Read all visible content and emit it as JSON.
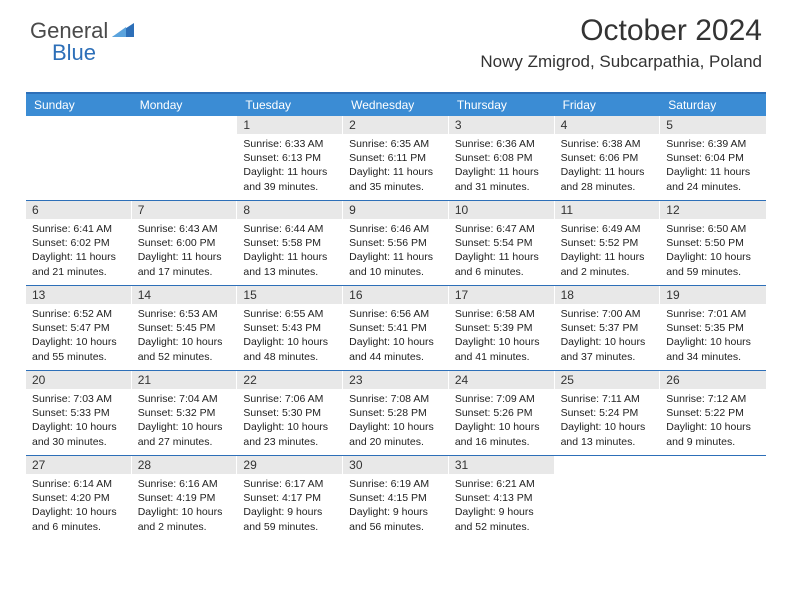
{
  "logo": {
    "word1": "General",
    "word2": "Blue"
  },
  "header": {
    "month_title": "October 2024",
    "location": "Nowy Zmigrod, Subcarpathia, Poland"
  },
  "colors": {
    "header_bg": "#3b8cd4",
    "header_rule": "#2d6fb8",
    "daynum_bg": "#e8e8e8",
    "logo_blue": "#2d6fb8",
    "logo_gray": "#4a4a4a"
  },
  "day_names": [
    "Sunday",
    "Monday",
    "Tuesday",
    "Wednesday",
    "Thursday",
    "Friday",
    "Saturday"
  ],
  "weeks": [
    [
      null,
      null,
      {
        "n": "1",
        "sr": "Sunrise: 6:33 AM",
        "ss": "Sunset: 6:13 PM",
        "d1": "Daylight: 11 hours",
        "d2": "and 39 minutes."
      },
      {
        "n": "2",
        "sr": "Sunrise: 6:35 AM",
        "ss": "Sunset: 6:11 PM",
        "d1": "Daylight: 11 hours",
        "d2": "and 35 minutes."
      },
      {
        "n": "3",
        "sr": "Sunrise: 6:36 AM",
        "ss": "Sunset: 6:08 PM",
        "d1": "Daylight: 11 hours",
        "d2": "and 31 minutes."
      },
      {
        "n": "4",
        "sr": "Sunrise: 6:38 AM",
        "ss": "Sunset: 6:06 PM",
        "d1": "Daylight: 11 hours",
        "d2": "and 28 minutes."
      },
      {
        "n": "5",
        "sr": "Sunrise: 6:39 AM",
        "ss": "Sunset: 6:04 PM",
        "d1": "Daylight: 11 hours",
        "d2": "and 24 minutes."
      }
    ],
    [
      {
        "n": "6",
        "sr": "Sunrise: 6:41 AM",
        "ss": "Sunset: 6:02 PM",
        "d1": "Daylight: 11 hours",
        "d2": "and 21 minutes."
      },
      {
        "n": "7",
        "sr": "Sunrise: 6:43 AM",
        "ss": "Sunset: 6:00 PM",
        "d1": "Daylight: 11 hours",
        "d2": "and 17 minutes."
      },
      {
        "n": "8",
        "sr": "Sunrise: 6:44 AM",
        "ss": "Sunset: 5:58 PM",
        "d1": "Daylight: 11 hours",
        "d2": "and 13 minutes."
      },
      {
        "n": "9",
        "sr": "Sunrise: 6:46 AM",
        "ss": "Sunset: 5:56 PM",
        "d1": "Daylight: 11 hours",
        "d2": "and 10 minutes."
      },
      {
        "n": "10",
        "sr": "Sunrise: 6:47 AM",
        "ss": "Sunset: 5:54 PM",
        "d1": "Daylight: 11 hours",
        "d2": "and 6 minutes."
      },
      {
        "n": "11",
        "sr": "Sunrise: 6:49 AM",
        "ss": "Sunset: 5:52 PM",
        "d1": "Daylight: 11 hours",
        "d2": "and 2 minutes."
      },
      {
        "n": "12",
        "sr": "Sunrise: 6:50 AM",
        "ss": "Sunset: 5:50 PM",
        "d1": "Daylight: 10 hours",
        "d2": "and 59 minutes."
      }
    ],
    [
      {
        "n": "13",
        "sr": "Sunrise: 6:52 AM",
        "ss": "Sunset: 5:47 PM",
        "d1": "Daylight: 10 hours",
        "d2": "and 55 minutes."
      },
      {
        "n": "14",
        "sr": "Sunrise: 6:53 AM",
        "ss": "Sunset: 5:45 PM",
        "d1": "Daylight: 10 hours",
        "d2": "and 52 minutes."
      },
      {
        "n": "15",
        "sr": "Sunrise: 6:55 AM",
        "ss": "Sunset: 5:43 PM",
        "d1": "Daylight: 10 hours",
        "d2": "and 48 minutes."
      },
      {
        "n": "16",
        "sr": "Sunrise: 6:56 AM",
        "ss": "Sunset: 5:41 PM",
        "d1": "Daylight: 10 hours",
        "d2": "and 44 minutes."
      },
      {
        "n": "17",
        "sr": "Sunrise: 6:58 AM",
        "ss": "Sunset: 5:39 PM",
        "d1": "Daylight: 10 hours",
        "d2": "and 41 minutes."
      },
      {
        "n": "18",
        "sr": "Sunrise: 7:00 AM",
        "ss": "Sunset: 5:37 PM",
        "d1": "Daylight: 10 hours",
        "d2": "and 37 minutes."
      },
      {
        "n": "19",
        "sr": "Sunrise: 7:01 AM",
        "ss": "Sunset: 5:35 PM",
        "d1": "Daylight: 10 hours",
        "d2": "and 34 minutes."
      }
    ],
    [
      {
        "n": "20",
        "sr": "Sunrise: 7:03 AM",
        "ss": "Sunset: 5:33 PM",
        "d1": "Daylight: 10 hours",
        "d2": "and 30 minutes."
      },
      {
        "n": "21",
        "sr": "Sunrise: 7:04 AM",
        "ss": "Sunset: 5:32 PM",
        "d1": "Daylight: 10 hours",
        "d2": "and 27 minutes."
      },
      {
        "n": "22",
        "sr": "Sunrise: 7:06 AM",
        "ss": "Sunset: 5:30 PM",
        "d1": "Daylight: 10 hours",
        "d2": "and 23 minutes."
      },
      {
        "n": "23",
        "sr": "Sunrise: 7:08 AM",
        "ss": "Sunset: 5:28 PM",
        "d1": "Daylight: 10 hours",
        "d2": "and 20 minutes."
      },
      {
        "n": "24",
        "sr": "Sunrise: 7:09 AM",
        "ss": "Sunset: 5:26 PM",
        "d1": "Daylight: 10 hours",
        "d2": "and 16 minutes."
      },
      {
        "n": "25",
        "sr": "Sunrise: 7:11 AM",
        "ss": "Sunset: 5:24 PM",
        "d1": "Daylight: 10 hours",
        "d2": "and 13 minutes."
      },
      {
        "n": "26",
        "sr": "Sunrise: 7:12 AM",
        "ss": "Sunset: 5:22 PM",
        "d1": "Daylight: 10 hours",
        "d2": "and 9 minutes."
      }
    ],
    [
      {
        "n": "27",
        "sr": "Sunrise: 6:14 AM",
        "ss": "Sunset: 4:20 PM",
        "d1": "Daylight: 10 hours",
        "d2": "and 6 minutes."
      },
      {
        "n": "28",
        "sr": "Sunrise: 6:16 AM",
        "ss": "Sunset: 4:19 PM",
        "d1": "Daylight: 10 hours",
        "d2": "and 2 minutes."
      },
      {
        "n": "29",
        "sr": "Sunrise: 6:17 AM",
        "ss": "Sunset: 4:17 PM",
        "d1": "Daylight: 9 hours",
        "d2": "and 59 minutes."
      },
      {
        "n": "30",
        "sr": "Sunrise: 6:19 AM",
        "ss": "Sunset: 4:15 PM",
        "d1": "Daylight: 9 hours",
        "d2": "and 56 minutes."
      },
      {
        "n": "31",
        "sr": "Sunrise: 6:21 AM",
        "ss": "Sunset: 4:13 PM",
        "d1": "Daylight: 9 hours",
        "d2": "and 52 minutes."
      },
      null,
      null
    ]
  ]
}
